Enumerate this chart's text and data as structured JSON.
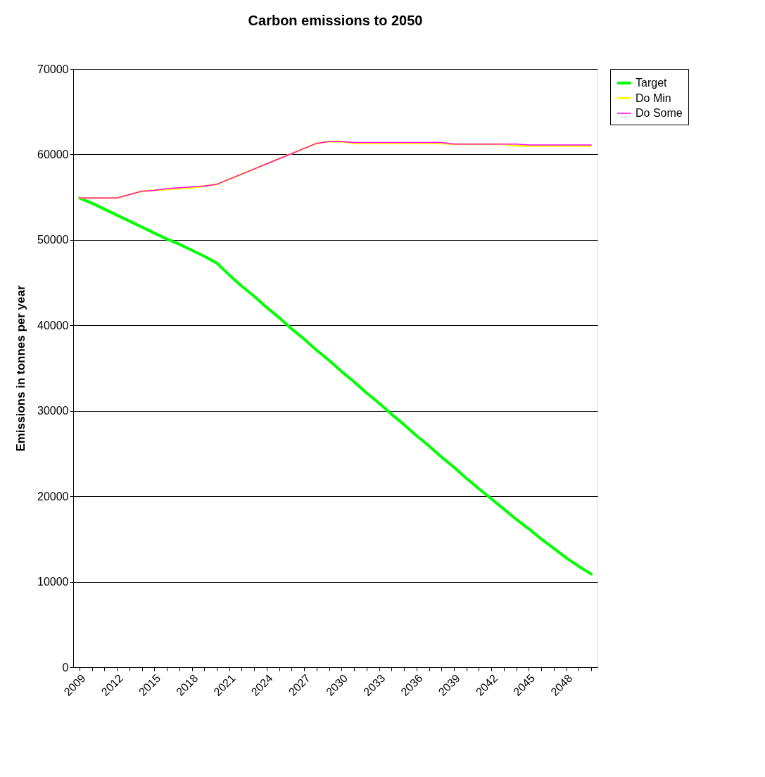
{
  "chart_data": {
    "type": "line",
    "title": "Carbon emissions to 2050",
    "ylabel": "Emissions in tonnes per year",
    "categories": [
      "2009",
      null,
      null,
      "2012",
      null,
      null,
      "2015",
      null,
      null,
      "2018",
      null,
      null,
      "2021",
      null,
      null,
      "2024",
      null,
      null,
      "2027",
      null,
      null,
      "2030",
      null,
      null,
      "2033",
      null,
      null,
      "2036",
      null,
      null,
      "2039",
      null,
      null,
      "2042",
      null,
      null,
      "2045",
      null,
      null,
      "2048",
      null,
      null
    ],
    "series": [
      {
        "name": "Target",
        "color": "#00ff00",
        "values": [
          54900,
          54300,
          53600,
          52900,
          52200,
          51500,
          50800,
          50100,
          49500,
          48800,
          48100,
          47300,
          45900,
          44600,
          43400,
          42100,
          40900,
          39600,
          38400,
          37100,
          35900,
          34600,
          33400,
          32100,
          30900,
          29600,
          28400,
          27100,
          25900,
          24600,
          23400,
          22100,
          20900,
          19700,
          18500,
          17300,
          16200,
          15000,
          13900,
          12800,
          11800,
          10900
        ]
      },
      {
        "name": "Do Min",
        "color": "#ffff00",
        "values": [
          54900,
          54900,
          54900,
          54900,
          55300,
          55700,
          55800,
          55900,
          56000,
          56100,
          56300,
          56500,
          57100,
          57700,
          58300,
          58900,
          59500,
          60100,
          60700,
          61300,
          61500,
          61500,
          61300,
          61300,
          61300,
          61300,
          61300,
          61300,
          61300,
          61300,
          61200,
          61200,
          61200,
          61200,
          61200,
          61000,
          61000,
          61000,
          61000,
          61000,
          61000,
          61000
        ]
      },
      {
        "name": "Do Some",
        "color": "#ff00ff",
        "values": [
          54900,
          54900,
          54900,
          54900,
          55300,
          55700,
          55800,
          56000,
          56100,
          56200,
          56300,
          56500,
          57100,
          57700,
          58300,
          58900,
          59500,
          60100,
          60700,
          61300,
          61500,
          61500,
          61400,
          61400,
          61400,
          61400,
          61400,
          61400,
          61400,
          61400,
          61200,
          61200,
          61200,
          61200,
          61200,
          61200,
          61100,
          61100,
          61100,
          61100,
          61100,
          61100
        ]
      }
    ],
    "ylim": [
      0,
      70000
    ],
    "yticks": [
      0,
      10000,
      20000,
      30000,
      40000,
      50000,
      60000,
      70000
    ],
    "grid": "y",
    "legend": "right"
  }
}
